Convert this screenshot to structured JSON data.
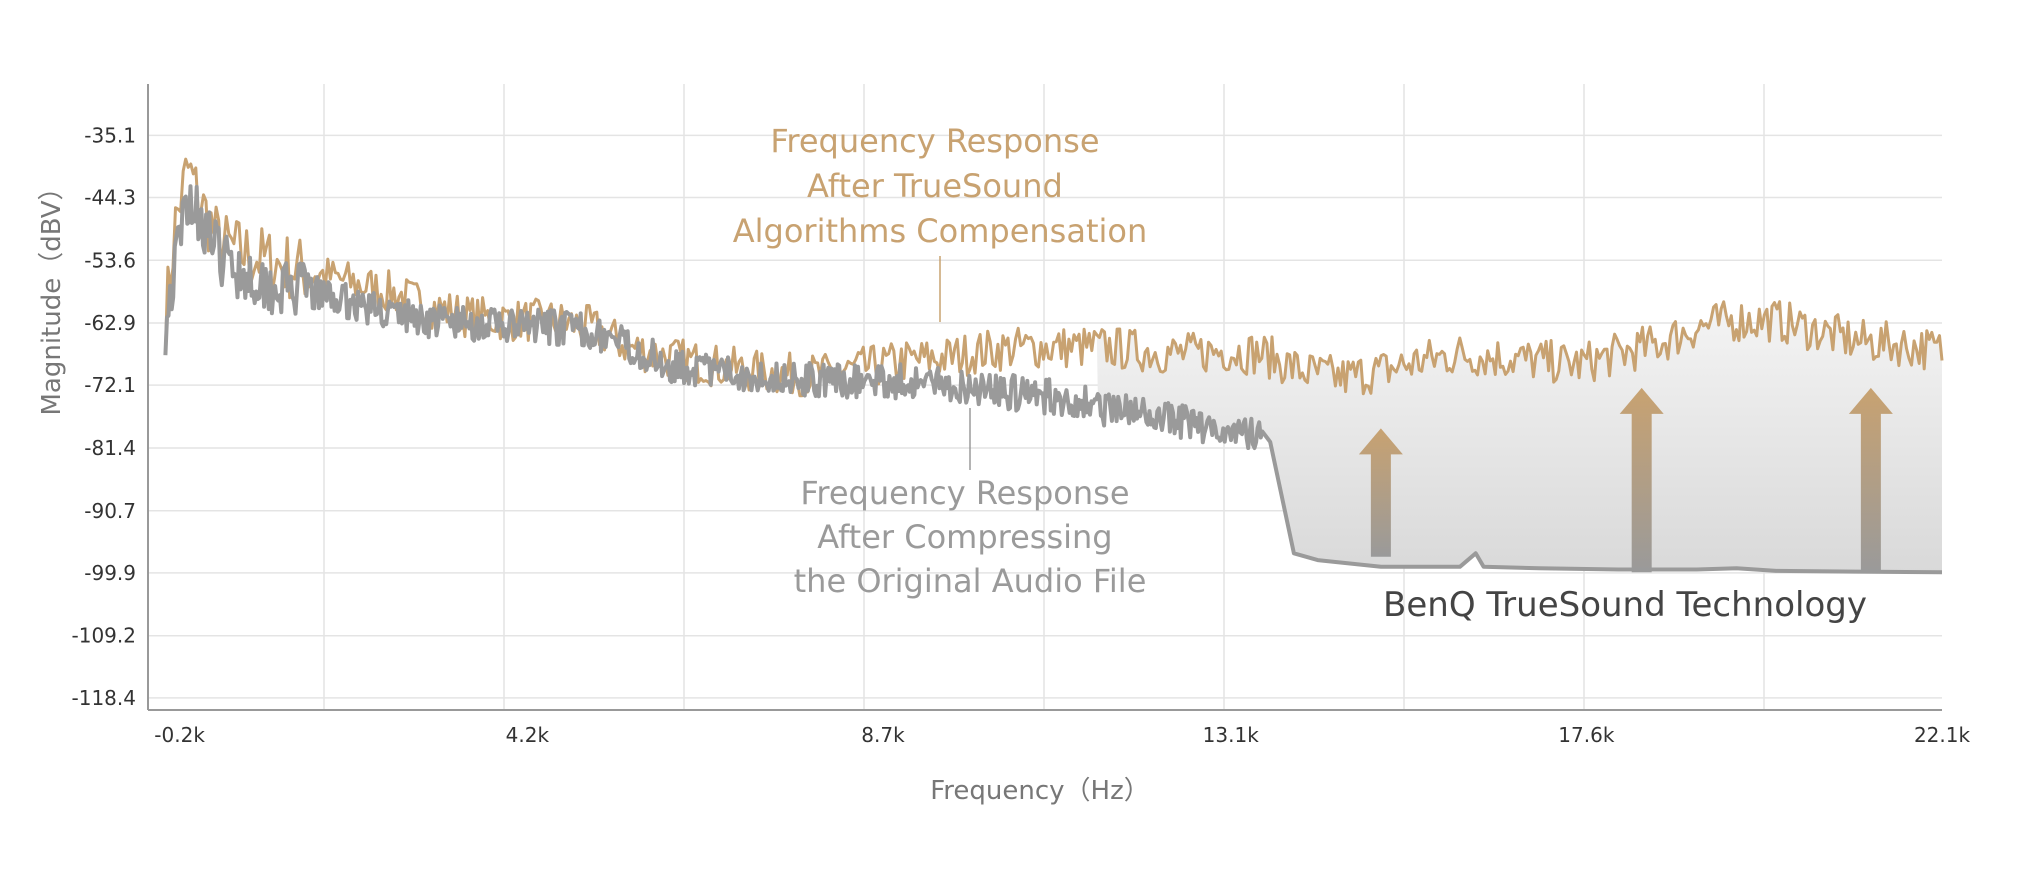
{
  "chart_data": {
    "type": "line",
    "xlabel": "Frequency（Hz）",
    "ylabel": "Magnitude（dBV）",
    "x_tick_labels": [
      "-0.2k",
      "4.2k",
      "8.7k",
      "13.1k",
      "17.6k",
      "22.1k"
    ],
    "x_ticks": [
      -0.2,
      4.2,
      8.7,
      13.1,
      17.6,
      22.1
    ],
    "y_tick_labels": [
      "-35.1",
      "-44.3",
      "-53.6",
      "-62.9",
      "-72.1",
      "-81.4",
      "-90.7",
      "-99.9",
      "-109.2",
      "-118.4"
    ],
    "y_ticks": [
      -35.1,
      -44.3,
      -53.6,
      -62.9,
      -72.1,
      -81.4,
      -90.7,
      -99.9,
      -109.2,
      -118.4
    ],
    "xlim": [
      -0.6,
      22.1
    ],
    "ylim": [
      -120.2,
      -27.5
    ],
    "grid": true,
    "series": [
      {
        "color": "#c8a271",
        "x": [
          -0.38,
          -0.25,
          -0.1,
          0.1,
          0.3,
          0.6,
          1.0,
          1.5,
          2.0,
          2.5,
          3.0,
          3.5,
          4.0,
          4.5,
          5.0,
          5.5,
          6.0,
          6.5,
          7.0,
          7.5,
          8.0,
          8.5,
          9.0,
          9.5,
          10.0,
          10.5,
          11.0,
          11.5,
          12.0,
          12.5,
          13.0,
          13.5,
          14.0,
          14.5,
          15.0,
          15.5,
          16.0,
          16.5,
          17.0,
          17.5,
          18.0,
          18.5,
          19.0,
          19.5,
          20.0,
          20.5,
          21.0,
          21.5,
          22.1
        ],
        "y": [
          -62.5,
          -48.0,
          -40.0,
          -46.0,
          -51.0,
          -52.5,
          -54.0,
          -55.5,
          -57.0,
          -58.5,
          -60.5,
          -62.0,
          -62.5,
          -62.5,
          -63.5,
          -66.5,
          -68.0,
          -69.0,
          -70.0,
          -70.5,
          -70.5,
          -69.5,
          -68.5,
          -68.0,
          -67.0,
          -66.5,
          -66.5,
          -66.5,
          -67.0,
          -67.5,
          -67.0,
          -67.5,
          -70.0,
          -71.0,
          -70.0,
          -68.5,
          -67.5,
          -68.0,
          -68.5,
          -69.0,
          -67.5,
          -66.0,
          -63.5,
          -62.5,
          -62.5,
          -64.0,
          -65.5,
          -66.0,
          -67.0
        ]
      },
      {
        "color": "#9a9a9a",
        "x": [
          -0.38,
          -0.25,
          -0.1,
          0.1,
          0.3,
          0.6,
          1.0,
          1.5,
          2.0,
          2.5,
          3.0,
          3.5,
          4.0,
          4.5,
          5.0,
          5.5,
          6.0,
          6.5,
          7.0,
          7.5,
          8.0,
          8.5,
          9.0,
          9.5,
          10.0,
          10.5,
          11.0,
          11.5,
          12.0,
          12.5,
          13.0,
          13.5,
          13.6,
          13.9,
          14.2,
          15.0,
          16.0,
          16.2,
          16.3,
          17.0,
          18.0,
          19.0,
          19.5,
          20.0,
          21.0,
          22.1
        ],
        "y": [
          -63.5,
          -54.0,
          -44.0,
          -48.0,
          -53.0,
          -55.5,
          -57.5,
          -58.5,
          -60.0,
          -61.5,
          -62.5,
          -63.0,
          -63.5,
          -63.5,
          -64.0,
          -66.5,
          -69.0,
          -70.0,
          -70.5,
          -71.0,
          -71.5,
          -71.5,
          -71.5,
          -72.0,
          -72.5,
          -73.5,
          -74.0,
          -75.5,
          -76.5,
          -77.5,
          -78.5,
          -79.5,
          -80.5,
          -97.0,
          -98.0,
          -99.0,
          -99.0,
          -97.0,
          -99.0,
          -99.2,
          -99.4,
          -99.4,
          -99.2,
          -99.6,
          -99.7,
          -99.8
        ]
      }
    ],
    "fill_color": "#d9d9d9",
    "arrows_color": "#c8a271",
    "annotations": [
      {
        "lines": [
          "Frequency Response",
          "After TrueSound",
          "Algorithms Compensation"
        ],
        "color": "#c8a271"
      },
      {
        "lines": [
          "Frequency Response",
          "After Compressing",
          "the Original Audio File"
        ],
        "color": "#9a9a9a"
      }
    ],
    "technology_label": "BenQ TrueSound Technology"
  }
}
